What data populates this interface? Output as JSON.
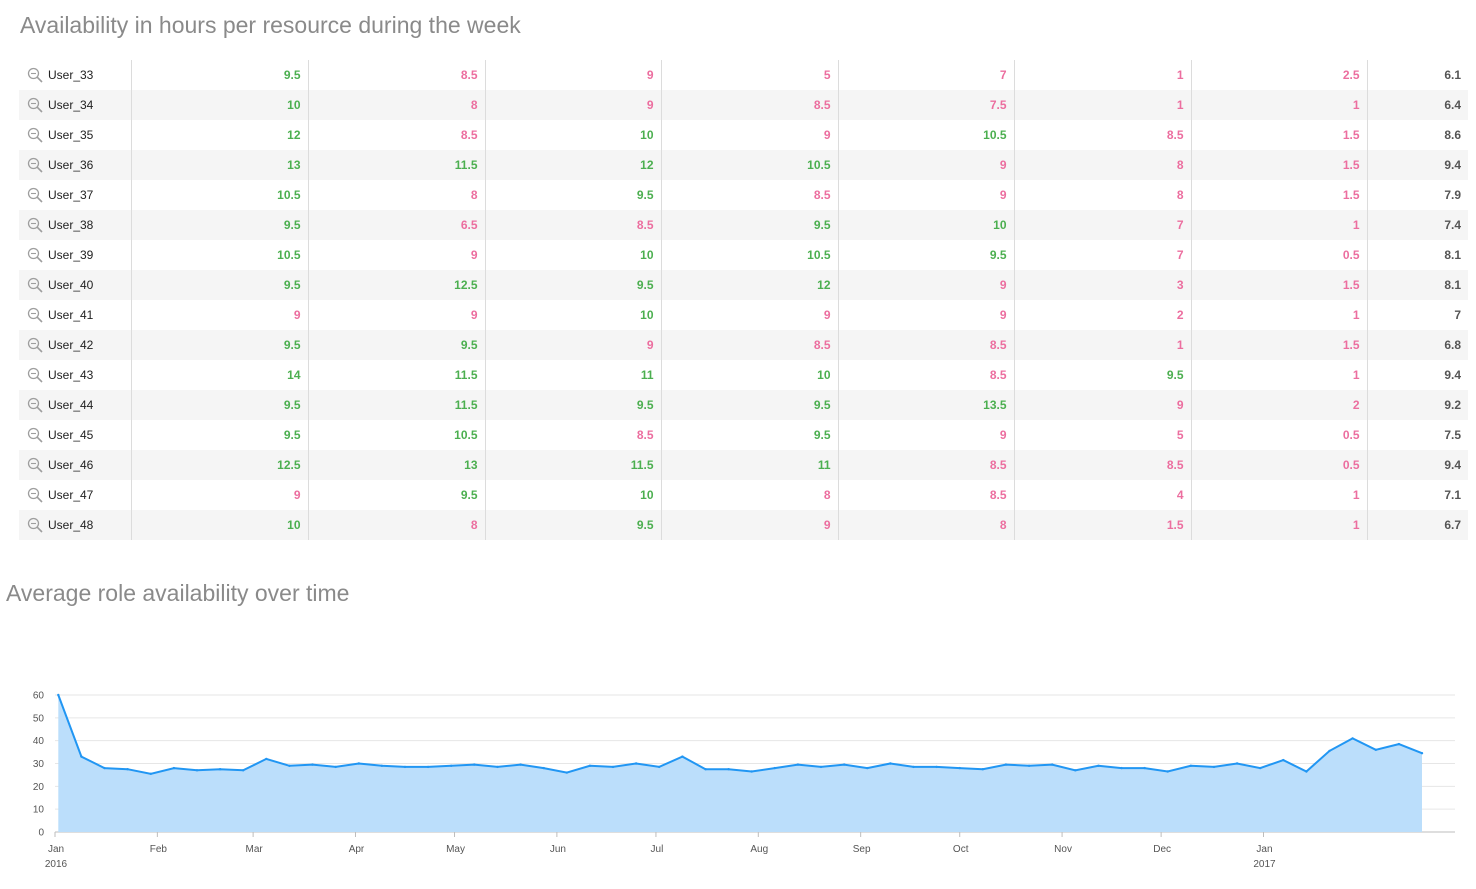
{
  "table_section": {
    "title": "Availability in hours per resource during the week",
    "rows": [
      {
        "name": "User_33",
        "values": [
          "9.5",
          "8.5",
          "9",
          "5",
          "7",
          "1",
          "2.5"
        ],
        "avg": "6.1"
      },
      {
        "name": "User_34",
        "values": [
          "10",
          "8",
          "9",
          "8.5",
          "7.5",
          "1",
          "1"
        ],
        "avg": "6.4"
      },
      {
        "name": "User_35",
        "values": [
          "12",
          "8.5",
          "10",
          "9",
          "10.5",
          "8.5",
          "1.5"
        ],
        "avg": "8.6"
      },
      {
        "name": "User_36",
        "values": [
          "13",
          "11.5",
          "12",
          "10.5",
          "9",
          "8",
          "1.5"
        ],
        "avg": "9.4"
      },
      {
        "name": "User_37",
        "values": [
          "10.5",
          "8",
          "9.5",
          "8.5",
          "9",
          "8",
          "1.5"
        ],
        "avg": "7.9"
      },
      {
        "name": "User_38",
        "values": [
          "9.5",
          "6.5",
          "8.5",
          "9.5",
          "10",
          "7",
          "1"
        ],
        "avg": "7.4"
      },
      {
        "name": "User_39",
        "values": [
          "10.5",
          "9",
          "10",
          "10.5",
          "9.5",
          "7",
          "0.5"
        ],
        "avg": "8.1"
      },
      {
        "name": "User_40",
        "values": [
          "9.5",
          "12.5",
          "9.5",
          "12",
          "9",
          "3",
          "1.5"
        ],
        "avg": "8.1"
      },
      {
        "name": "User_41",
        "values": [
          "9",
          "9",
          "10",
          "9",
          "9",
          "2",
          "1"
        ],
        "avg": "7"
      },
      {
        "name": "User_42",
        "values": [
          "9.5",
          "9.5",
          "9",
          "8.5",
          "8.5",
          "1",
          "1.5"
        ],
        "avg": "6.8"
      },
      {
        "name": "User_43",
        "values": [
          "14",
          "11.5",
          "11",
          "10",
          "8.5",
          "9.5",
          "1"
        ],
        "avg": "9.4"
      },
      {
        "name": "User_44",
        "values": [
          "9.5",
          "11.5",
          "9.5",
          "9.5",
          "13.5",
          "9",
          "2"
        ],
        "avg": "9.2"
      },
      {
        "name": "User_45",
        "values": [
          "9.5",
          "10.5",
          "8.5",
          "9.5",
          "9",
          "5",
          "0.5"
        ],
        "avg": "7.5"
      },
      {
        "name": "User_46",
        "values": [
          "12.5",
          "13",
          "11.5",
          "11",
          "8.5",
          "8.5",
          "0.5"
        ],
        "avg": "9.4"
      },
      {
        "name": "User_47",
        "values": [
          "9",
          "9.5",
          "10",
          "8",
          "8.5",
          "4",
          "1"
        ],
        "avg": "7.1"
      },
      {
        "name": "User_48",
        "values": [
          "10",
          "8",
          "9.5",
          "9",
          "8",
          "1.5",
          "1"
        ],
        "avg": "6.7"
      }
    ]
  },
  "chart_section": {
    "title": "Average role availability over time"
  },
  "colors": {
    "good": "#4caf50",
    "bad": "#ec6e9f",
    "line": "#2196f3",
    "area": "#bbdefb"
  },
  "icons": {
    "row_zoom": "zoom-icon"
  },
  "chart_data": {
    "type": "area",
    "title": "",
    "xlabel": "",
    "ylabel": "",
    "ylim": [
      0,
      60
    ],
    "yticks": [
      "0",
      "10",
      "20",
      "30",
      "40",
      "50",
      "60"
    ],
    "x_tick_labels": [
      {
        "label": "Jan",
        "sub": "2016"
      },
      {
        "label": "Feb",
        "sub": ""
      },
      {
        "label": "Mar",
        "sub": ""
      },
      {
        "label": "Apr",
        "sub": ""
      },
      {
        "label": "May",
        "sub": ""
      },
      {
        "label": "Jun",
        "sub": ""
      },
      {
        "label": "Jul",
        "sub": ""
      },
      {
        "label": "Aug",
        "sub": ""
      },
      {
        "label": "Sep",
        "sub": ""
      },
      {
        "label": "Oct",
        "sub": ""
      },
      {
        "label": "Nov",
        "sub": ""
      },
      {
        "label": "Dec",
        "sub": ""
      },
      {
        "label": "Jan",
        "sub": "2017"
      }
    ],
    "grid": true,
    "legend": "none",
    "x_start": "2016-01-01",
    "x_end": "2017-02-28",
    "x": [
      "2016-01-02",
      "2016-01-09",
      "2016-01-16",
      "2016-01-23",
      "2016-01-30",
      "2016-02-06",
      "2016-02-13",
      "2016-02-20",
      "2016-02-27",
      "2016-03-05",
      "2016-03-12",
      "2016-03-19",
      "2016-03-26",
      "2016-04-02",
      "2016-04-09",
      "2016-04-16",
      "2016-04-23",
      "2016-04-30",
      "2016-05-07",
      "2016-05-14",
      "2016-05-21",
      "2016-05-28",
      "2016-06-04",
      "2016-06-11",
      "2016-06-18",
      "2016-06-25",
      "2016-07-02",
      "2016-07-09",
      "2016-07-16",
      "2016-07-23",
      "2016-07-30",
      "2016-08-06",
      "2016-08-13",
      "2016-08-20",
      "2016-08-27",
      "2016-09-03",
      "2016-09-10",
      "2016-09-17",
      "2016-09-24",
      "2016-10-01",
      "2016-10-08",
      "2016-10-15",
      "2016-10-22",
      "2016-10-29",
      "2016-11-05",
      "2016-11-12",
      "2016-11-19",
      "2016-11-26",
      "2016-12-03",
      "2016-12-10",
      "2016-12-17",
      "2016-12-24",
      "2016-12-31",
      "2017-01-07",
      "2017-01-14",
      "2017-01-21",
      "2017-01-28",
      "2017-02-04",
      "2017-02-11",
      "2017-02-18"
    ],
    "values": [
      60,
      33,
      28,
      27.5,
      25.5,
      28,
      27,
      27.5,
      27,
      32,
      29,
      29.5,
      28.5,
      30,
      29,
      28.5,
      28.5,
      29,
      29.5,
      28.5,
      29.5,
      28,
      26,
      29,
      28.5,
      30,
      28.5,
      33,
      27.5,
      27.5,
      26.5,
      28,
      29.5,
      28.5,
      29.5,
      28,
      30,
      28.5,
      28.5,
      28,
      27.5,
      29.5,
      29,
      29.5,
      27,
      29,
      28,
      28,
      26.5,
      29,
      28.5,
      30,
      28,
      31.5,
      26.5,
      35.5,
      41,
      36,
      38.5,
      34.5
    ]
  }
}
